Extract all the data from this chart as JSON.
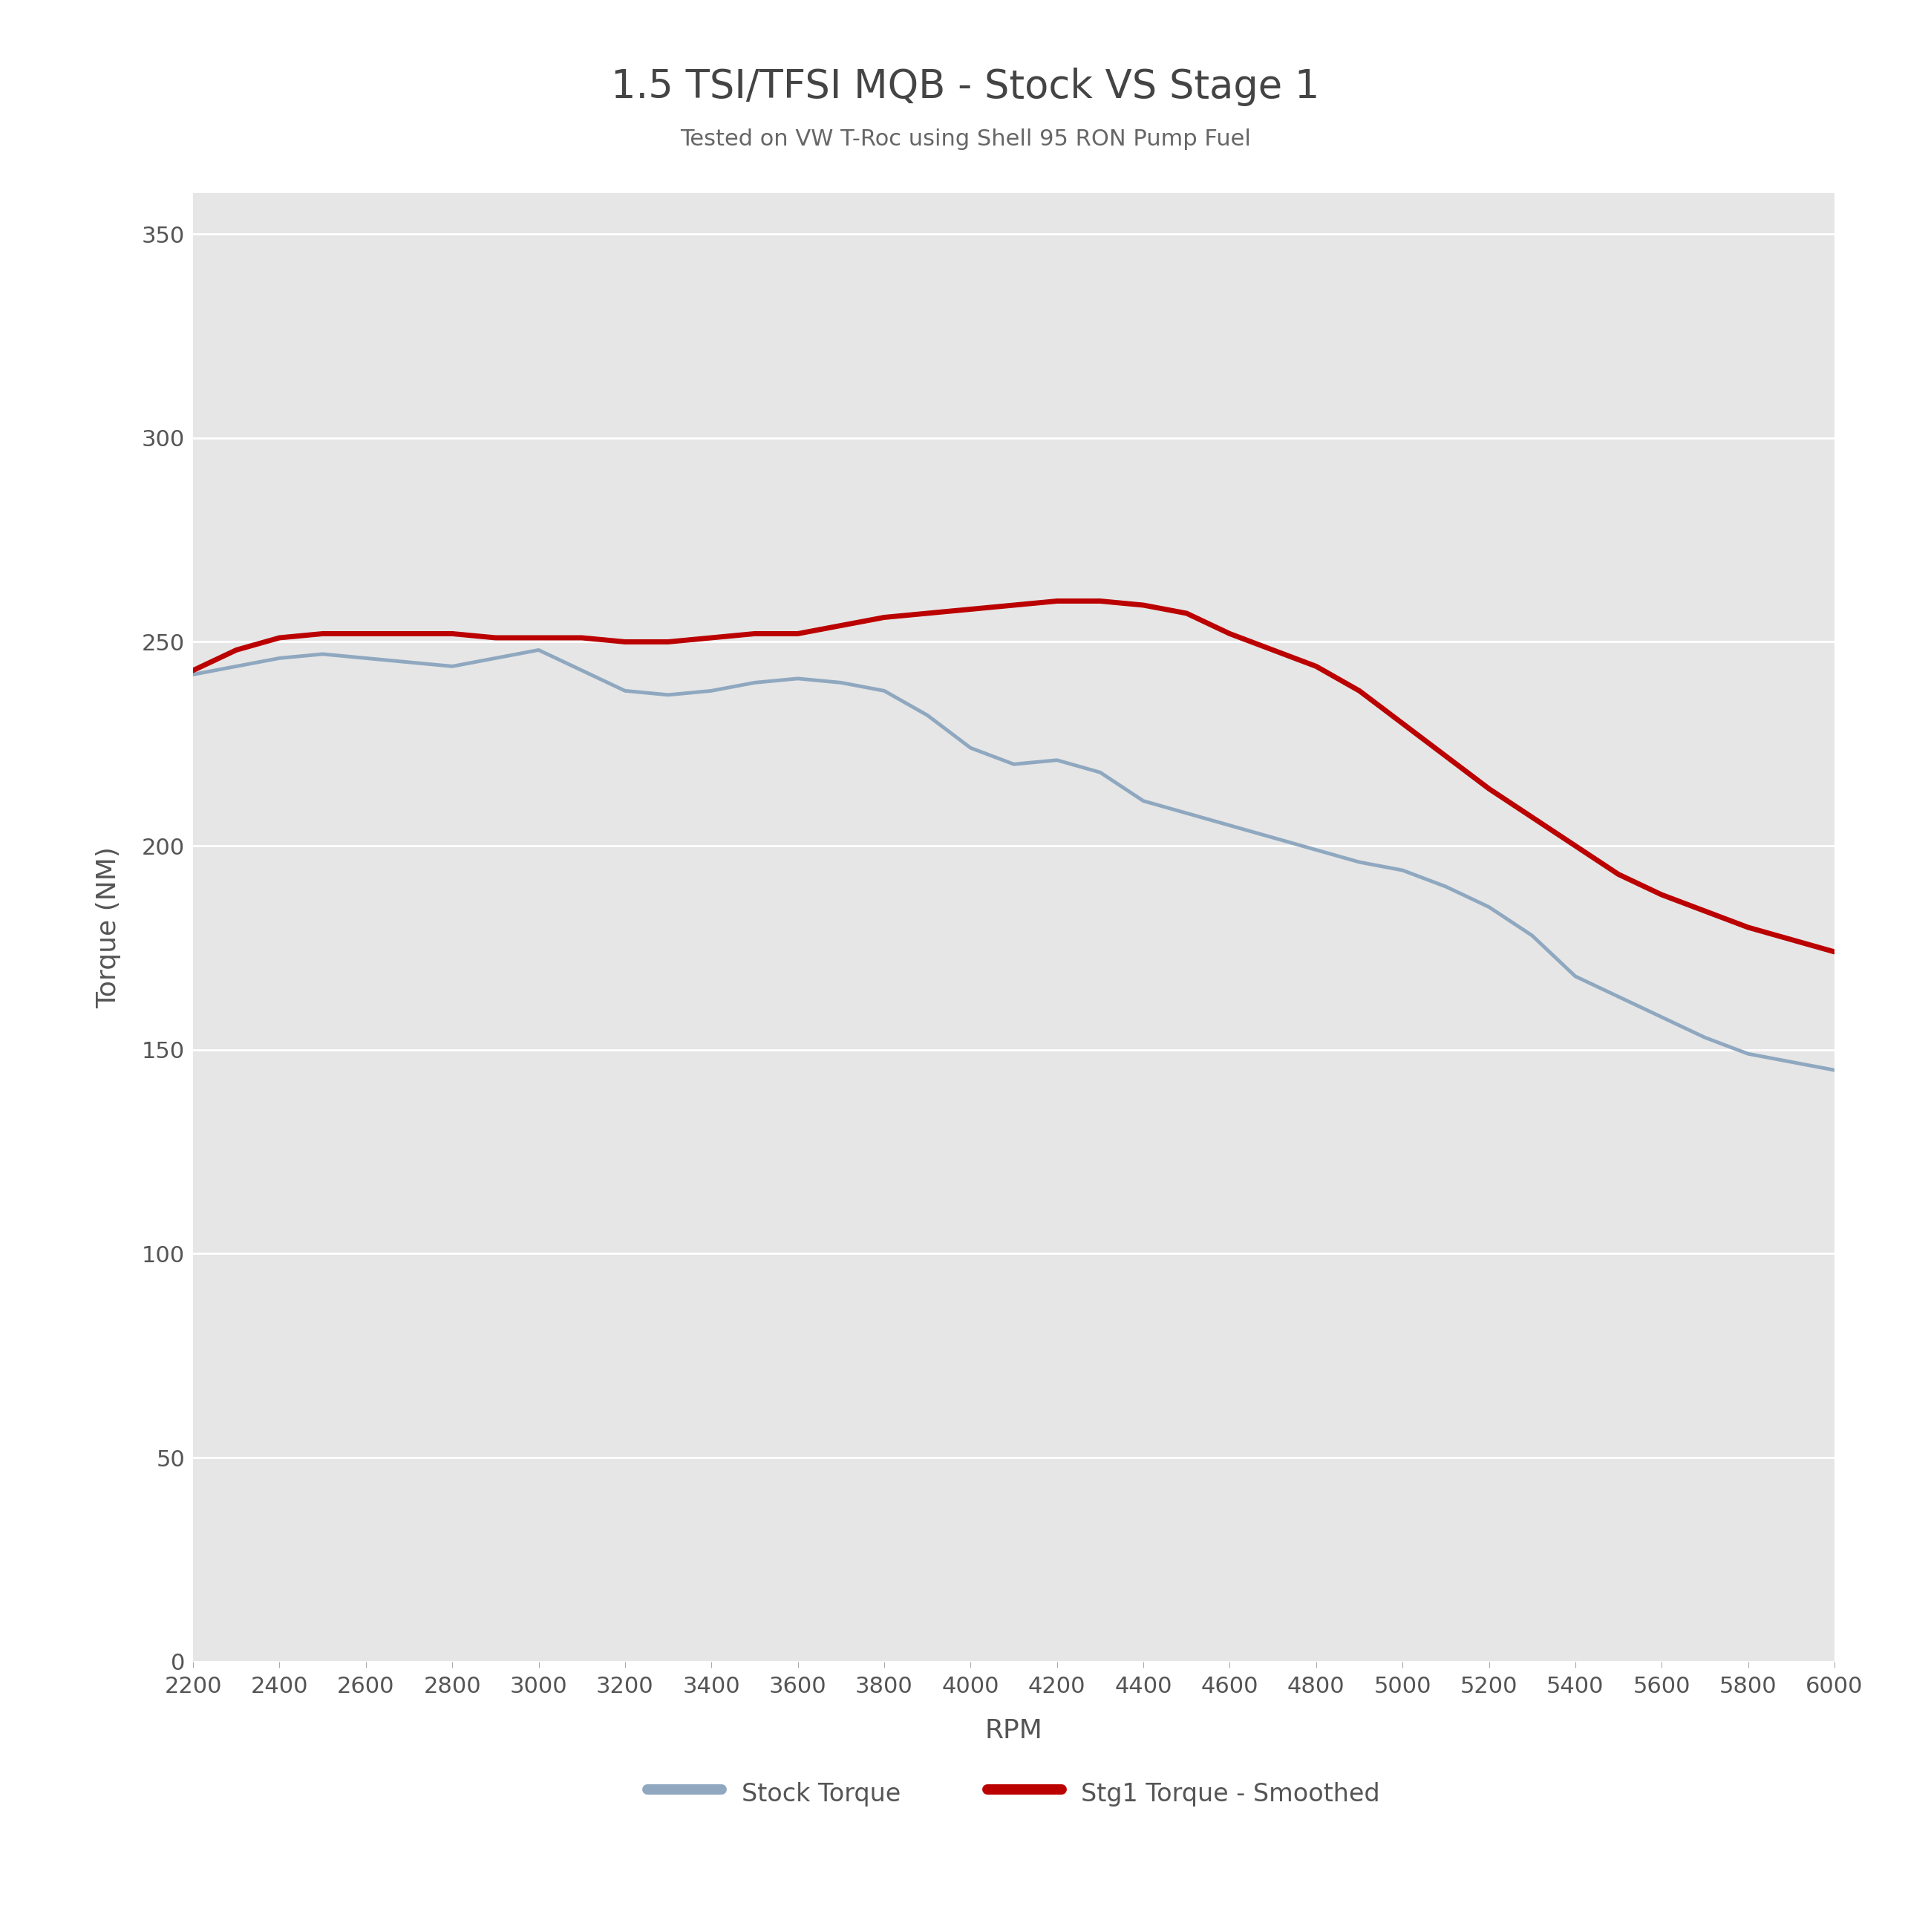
{
  "title": "1.5 TSI/TFSI MQB - Stock VS Stage 1",
  "subtitle": "Tested on VW T-Roc using Shell 95 RON Pump Fuel",
  "xlabel": "RPM",
  "ylabel": "Torque (NM)",
  "title_fontsize": 38,
  "subtitle_fontsize": 22,
  "axis_label_fontsize": 26,
  "tick_fontsize": 22,
  "legend_fontsize": 24,
  "background_color": "#ffffff",
  "plot_bg_color": "#e6e6e6",
  "grid_color": "#ffffff",
  "ylim": [
    0,
    360
  ],
  "yticks": [
    0,
    50,
    100,
    150,
    200,
    250,
    300,
    350
  ],
  "stock_color": "#8fa8c0",
  "stage1_color": "#bb0000",
  "stock_linewidth": 3.5,
  "stage1_linewidth": 5.0,
  "rpm": [
    2200,
    2300,
    2400,
    2500,
    2600,
    2700,
    2800,
    2900,
    3000,
    3100,
    3200,
    3300,
    3400,
    3500,
    3600,
    3700,
    3800,
    3900,
    4000,
    4100,
    4200,
    4300,
    4400,
    4500,
    4600,
    4700,
    4800,
    4900,
    5000,
    5100,
    5200,
    5300,
    5400,
    5500,
    5600,
    5700,
    5800,
    5900,
    6000
  ],
  "stock_torque": [
    242,
    244,
    246,
    247,
    246,
    245,
    244,
    246,
    248,
    243,
    238,
    237,
    238,
    240,
    241,
    240,
    238,
    232,
    224,
    220,
    221,
    218,
    211,
    208,
    205,
    202,
    199,
    196,
    194,
    190,
    185,
    178,
    168,
    163,
    158,
    153,
    149,
    147,
    145
  ],
  "stage1_torque": [
    243,
    248,
    251,
    252,
    252,
    252,
    252,
    251,
    251,
    251,
    250,
    250,
    251,
    252,
    252,
    254,
    256,
    257,
    258,
    259,
    260,
    260,
    259,
    257,
    252,
    248,
    244,
    238,
    230,
    222,
    214,
    207,
    200,
    193,
    188,
    184,
    180,
    177,
    174
  ],
  "title_color": "#444444",
  "subtitle_color": "#666666",
  "tick_color": "#555555",
  "label_color": "#555555",
  "legend_handle_linewidth": 10
}
